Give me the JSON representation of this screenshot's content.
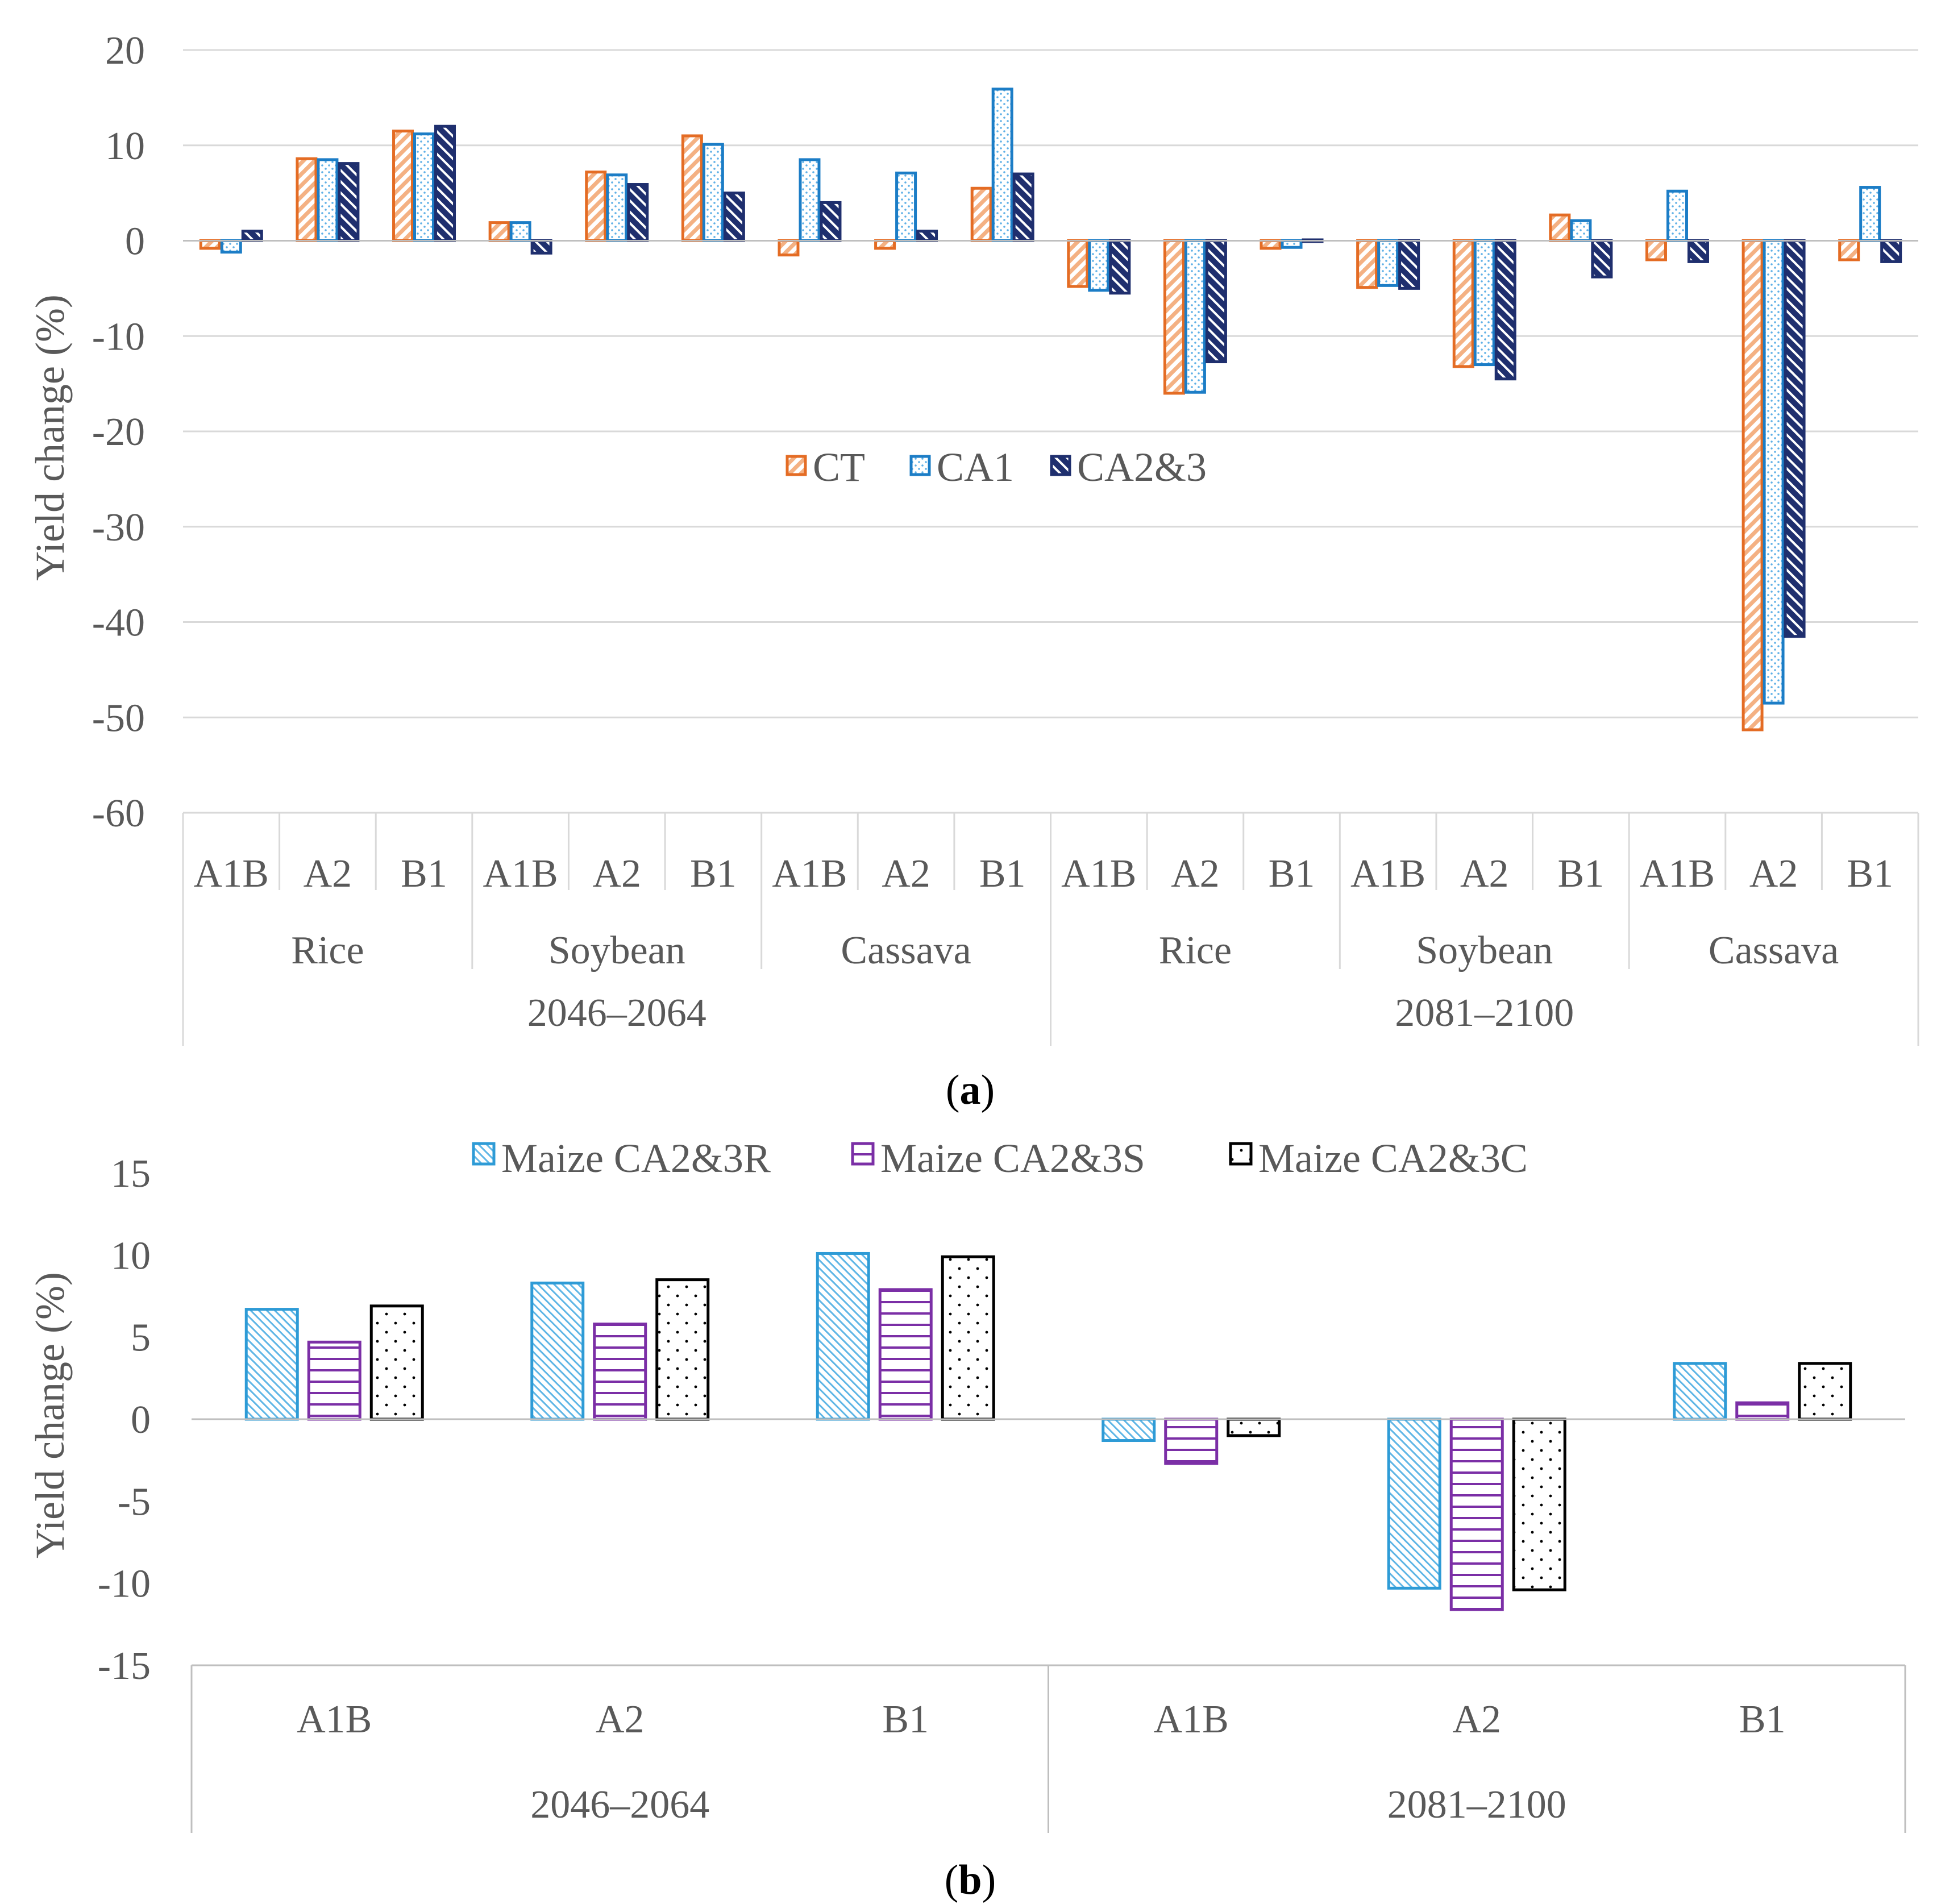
{
  "chart_data": [
    {
      "type": "bar",
      "panel_label": "a",
      "ylabel": "Yield change (%)",
      "ylim": [
        -60,
        20
      ],
      "yticks": [
        20,
        10,
        0,
        -10,
        -20,
        -30,
        -40,
        -50,
        -60
      ],
      "grid": true,
      "legend_position": "center",
      "periods": [
        {
          "label": "2046–2064",
          "crops": [
            {
              "label": "Rice",
              "scenarios": [
                "A1B",
                "A2",
                "B1"
              ]
            },
            {
              "label": "Soybean",
              "scenarios": [
                "A1B",
                "A2",
                "B1"
              ]
            },
            {
              "label": "Cassava",
              "scenarios": [
                "A1B",
                "A2",
                "B1"
              ]
            }
          ]
        },
        {
          "label": "2081–2100",
          "crops": [
            {
              "label": "Rice",
              "scenarios": [
                "A1B",
                "A2",
                "B1"
              ]
            },
            {
              "label": "Soybean",
              "scenarios": [
                "A1B",
                "A2",
                "B1"
              ]
            },
            {
              "label": "Cassava",
              "scenarios": [
                "A1B",
                "A2",
                "B1"
              ]
            }
          ]
        }
      ],
      "series": [
        {
          "name": "CT",
          "color": "#E46C24",
          "pattern": "diag",
          "values": [
            -0.8,
            8.6,
            11.5,
            1.9,
            7.2,
            11.0,
            -1.5,
            -0.8,
            5.5,
            -4.8,
            -16.0,
            -0.8,
            -4.9,
            -13.2,
            2.7,
            -2.0,
            -51.3,
            -2.0
          ]
        },
        {
          "name": "CA1",
          "color": "#1C7DC6",
          "pattern": "dots",
          "values": [
            -1.2,
            8.5,
            11.2,
            1.9,
            6.9,
            10.1,
            8.5,
            7.1,
            15.9,
            -5.2,
            -15.9,
            -0.7,
            -4.7,
            -13.0,
            2.1,
            5.2,
            -48.5,
            5.6
          ]
        },
        {
          "name": "CA2&3",
          "color": "#1F2F6E",
          "pattern": "dark",
          "values": [
            1.0,
            8.1,
            12.0,
            -1.3,
            5.9,
            5.0,
            4.0,
            1.0,
            7.0,
            -5.5,
            -12.7,
            0.0,
            -5.0,
            -14.5,
            -3.8,
            -2.2,
            -41.5,
            -2.2
          ]
        }
      ]
    },
    {
      "type": "bar",
      "panel_label": "b",
      "ylabel": "Yield change (%)",
      "ylim": [
        -15,
        15
      ],
      "yticks": [
        15,
        10,
        5,
        0,
        -5,
        -10,
        -15
      ],
      "grid": false,
      "legend_position": "top",
      "periods": [
        {
          "label": "2046–2064",
          "scenarios": [
            "A1B",
            "A2",
            "B1"
          ]
        },
        {
          "label": "2081–2100",
          "scenarios": [
            "A1B",
            "A2",
            "B1"
          ]
        }
      ],
      "series": [
        {
          "name": "Maize CA2&3R",
          "color": "#2E9BD6",
          "pattern": "diag-thin",
          "values": [
            6.7,
            8.3,
            10.1,
            -1.3,
            -10.3,
            3.4
          ]
        },
        {
          "name": "Maize CA2&3S",
          "color": "#7B2FA6",
          "pattern": "hlines",
          "values": [
            4.7,
            5.8,
            7.9,
            -2.7,
            -11.6,
            1.0
          ]
        },
        {
          "name": "Maize CA2&3C",
          "color": "#000000",
          "pattern": "sparse-dots",
          "values": [
            6.9,
            8.5,
            9.9,
            -1.0,
            -10.4,
            3.4
          ]
        }
      ]
    }
  ]
}
